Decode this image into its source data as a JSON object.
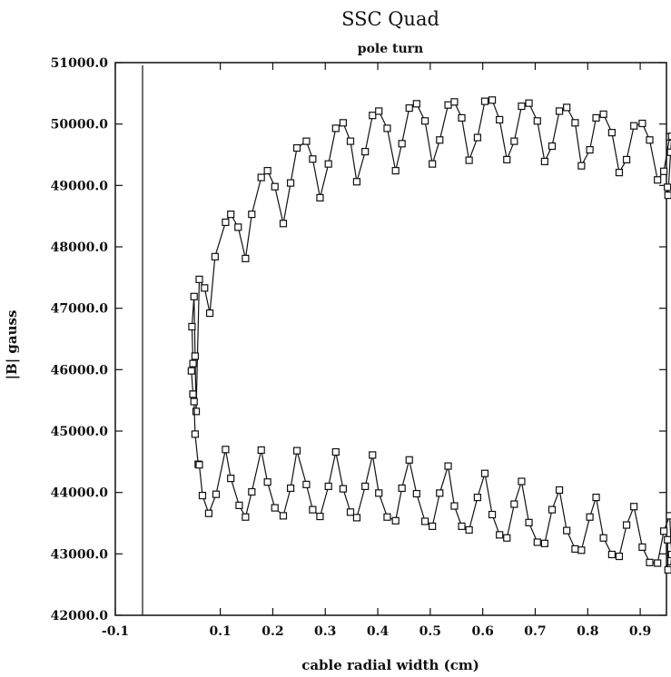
{
  "chart_data": {
    "type": "line",
    "title": "SSC Quad",
    "subtitle": "pole turn",
    "xlabel": "cable radial width (cm)",
    "ylabel": "|B| gauss",
    "xlim": [
      -0.1,
      0.95
    ],
    "ylim": [
      42000.0,
      51000.0
    ],
    "x_ticks": [
      -0.1,
      0.1,
      0.2,
      0.3,
      0.4,
      0.5,
      0.6,
      0.7,
      0.8,
      0.9
    ],
    "x_tick_labels": [
      "-0.1",
      "0.1",
      "0.2",
      "0.3",
      "0.4",
      "0.5",
      "0.6",
      "0.7",
      "0.8",
      "0.9"
    ],
    "y_ticks": [
      42000,
      43000,
      44000,
      45000,
      46000,
      47000,
      48000,
      49000,
      50000,
      51000
    ],
    "y_tick_labels": [
      "42000.0",
      "43000.0",
      "44000.0",
      "45000.0",
      "46000.0",
      "47000.0",
      "48000.0",
      "49000.0",
      "50000.0",
      "51000.0"
    ],
    "grid": false,
    "marker": "open-square",
    "series": [
      {
        "x": [
          0.048,
          0.045,
          0.048,
          0.046,
          0.05,
          0.052,
          0.054,
          0.06,
          0.07,
          0.08,
          0.09,
          0.11,
          0.12,
          0.134,
          0.148,
          0.16,
          0.178,
          0.19,
          0.204,
          0.22,
          0.234,
          0.246,
          0.264,
          0.276,
          0.29,
          0.306,
          0.32,
          0.334,
          0.348,
          0.36,
          0.376,
          0.39,
          0.402,
          0.418,
          0.434,
          0.446,
          0.46,
          0.474,
          0.49,
          0.504,
          0.518,
          0.534,
          0.546,
          0.56,
          0.574,
          0.59,
          0.604,
          0.618,
          0.632,
          0.646,
          0.66,
          0.674,
          0.688,
          0.704,
          0.718,
          0.732,
          0.746,
          0.76,
          0.776,
          0.788,
          0.804,
          0.816,
          0.83,
          0.846,
          0.86,
          0.874,
          0.888,
          0.904,
          0.918,
          0.933,
          0.945,
          0.956,
          0.96,
          0.958,
          0.953,
          0.952
        ],
        "y": [
          45600,
          45980,
          46100,
          46700,
          47190,
          46220,
          45320,
          47470,
          47330,
          46920,
          47840,
          48400,
          48530,
          48320,
          47810,
          48530,
          49130,
          49240,
          48980,
          48380,
          49040,
          49610,
          49720,
          49430,
          48800,
          49350,
          49930,
          50020,
          49720,
          49060,
          49550,
          50140,
          50210,
          49930,
          49240,
          49680,
          50260,
          50330,
          50050,
          49350,
          49740,
          50310,
          50360,
          50100,
          49410,
          49780,
          50370,
          50390,
          50070,
          49420,
          49720,
          50290,
          50340,
          50050,
          49390,
          49640,
          50210,
          50270,
          50020,
          49320,
          49580,
          50100,
          50160,
          49860,
          49210,
          49420,
          49970,
          50010,
          49740,
          49090,
          49230,
          49790,
          49800,
          49540,
          48840,
          48970
        ]
      },
      {
        "x": [
          0.048,
          0.05,
          0.052,
          0.058,
          0.06,
          0.066,
          0.078,
          0.092,
          0.11,
          0.12,
          0.136,
          0.148,
          0.16,
          0.178,
          0.19,
          0.204,
          0.22,
          0.234,
          0.246,
          0.264,
          0.276,
          0.29,
          0.306,
          0.32,
          0.334,
          0.348,
          0.36,
          0.376,
          0.39,
          0.402,
          0.418,
          0.434,
          0.446,
          0.46,
          0.474,
          0.49,
          0.504,
          0.518,
          0.534,
          0.546,
          0.56,
          0.574,
          0.59,
          0.604,
          0.618,
          0.632,
          0.646,
          0.66,
          0.674,
          0.688,
          0.704,
          0.718,
          0.732,
          0.746,
          0.76,
          0.776,
          0.788,
          0.804,
          0.816,
          0.83,
          0.846,
          0.86,
          0.874,
          0.888,
          0.904,
          0.918,
          0.933,
          0.945,
          0.956,
          0.96,
          0.958,
          0.953,
          0.952
        ],
        "y": [
          45600,
          45480,
          44950,
          44460,
          44450,
          43950,
          43660,
          43970,
          44700,
          44230,
          43790,
          43600,
          44010,
          44690,
          44170,
          43750,
          43620,
          44070,
          44680,
          44130,
          43720,
          43610,
          44100,
          44660,
          44060,
          43680,
          43590,
          44100,
          44610,
          43990,
          43600,
          43540,
          44070,
          44530,
          43980,
          43530,
          43450,
          43990,
          44430,
          43780,
          43450,
          43390,
          43920,
          44310,
          43640,
          43310,
          43260,
          43810,
          44180,
          43510,
          43190,
          43170,
          43720,
          44040,
          43380,
          43080,
          43060,
          43600,
          43920,
          43260,
          42990,
          42960,
          43470,
          43770,
          43110,
          42860,
          42850,
          43370,
          43620,
          42990,
          42770,
          42740,
          43230
        ]
      }
    ]
  }
}
